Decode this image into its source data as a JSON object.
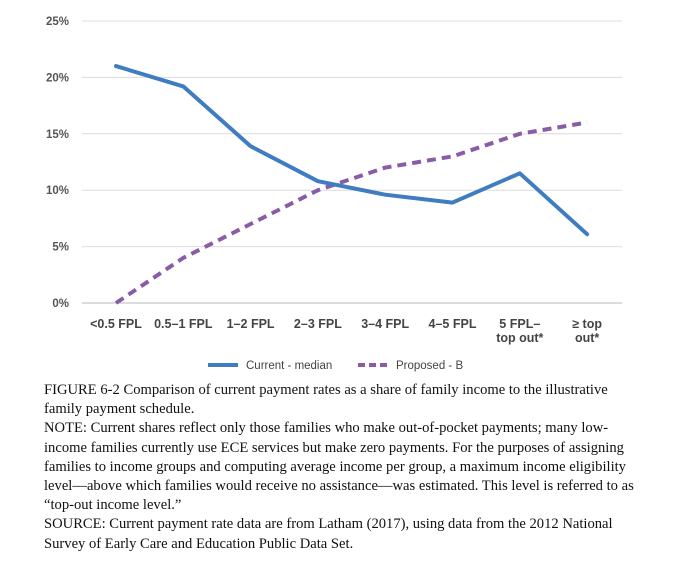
{
  "chart_data": {
    "type": "line",
    "title": "",
    "xlabel": "",
    "ylabel": "",
    "ylim": [
      0,
      25
    ],
    "yticks": [
      "0%",
      "5%",
      "10%",
      "15%",
      "20%",
      "25%"
    ],
    "ytick_values": [
      0,
      5,
      10,
      15,
      20,
      25
    ],
    "grid": true,
    "categories": [
      [
        "<0.5 FPL"
      ],
      [
        "0.5–1 FPL"
      ],
      [
        "1–2 FPL"
      ],
      [
        "2–3 FPL"
      ],
      [
        "3–4 FPL"
      ],
      [
        "4–5 FPL"
      ],
      [
        "5 FPL–",
        "top out*"
      ],
      [
        "≥ top",
        "out*"
      ]
    ],
    "series": [
      {
        "name": "Current - median",
        "values": [
          21.0,
          19.2,
          13.9,
          10.8,
          9.6,
          8.9,
          11.5,
          6.1
        ],
        "color": "#3f7cc0",
        "style": "solid"
      },
      {
        "name": "Proposed - B",
        "values": [
          0.0,
          4.0,
          7.0,
          10.0,
          12.0,
          13.0,
          15.0,
          16.0
        ],
        "color": "#8a5ca6",
        "style": "dashed"
      }
    ],
    "legend_position": "bottom"
  },
  "caption": {
    "figure_label": "FIGURE 6-2",
    "figure_text": "Comparison of current payment rates as a share of family income to the illustrative family payment schedule.",
    "note": "NOTE: Current shares reflect only those families who make out-of-pocket payments; many low-income families currently use ECE services but make zero payments. For the purposes of assigning families to income groups and computing average income per group, a maximum income eligibility level—above which families would receive no assistance—was estimated. This level is referred to as “top-out income level.”",
    "source": "SOURCE: Current payment rate data are from Latham (2017), using data from the 2012 National Survey of Early Care and Education Public Data Set."
  }
}
